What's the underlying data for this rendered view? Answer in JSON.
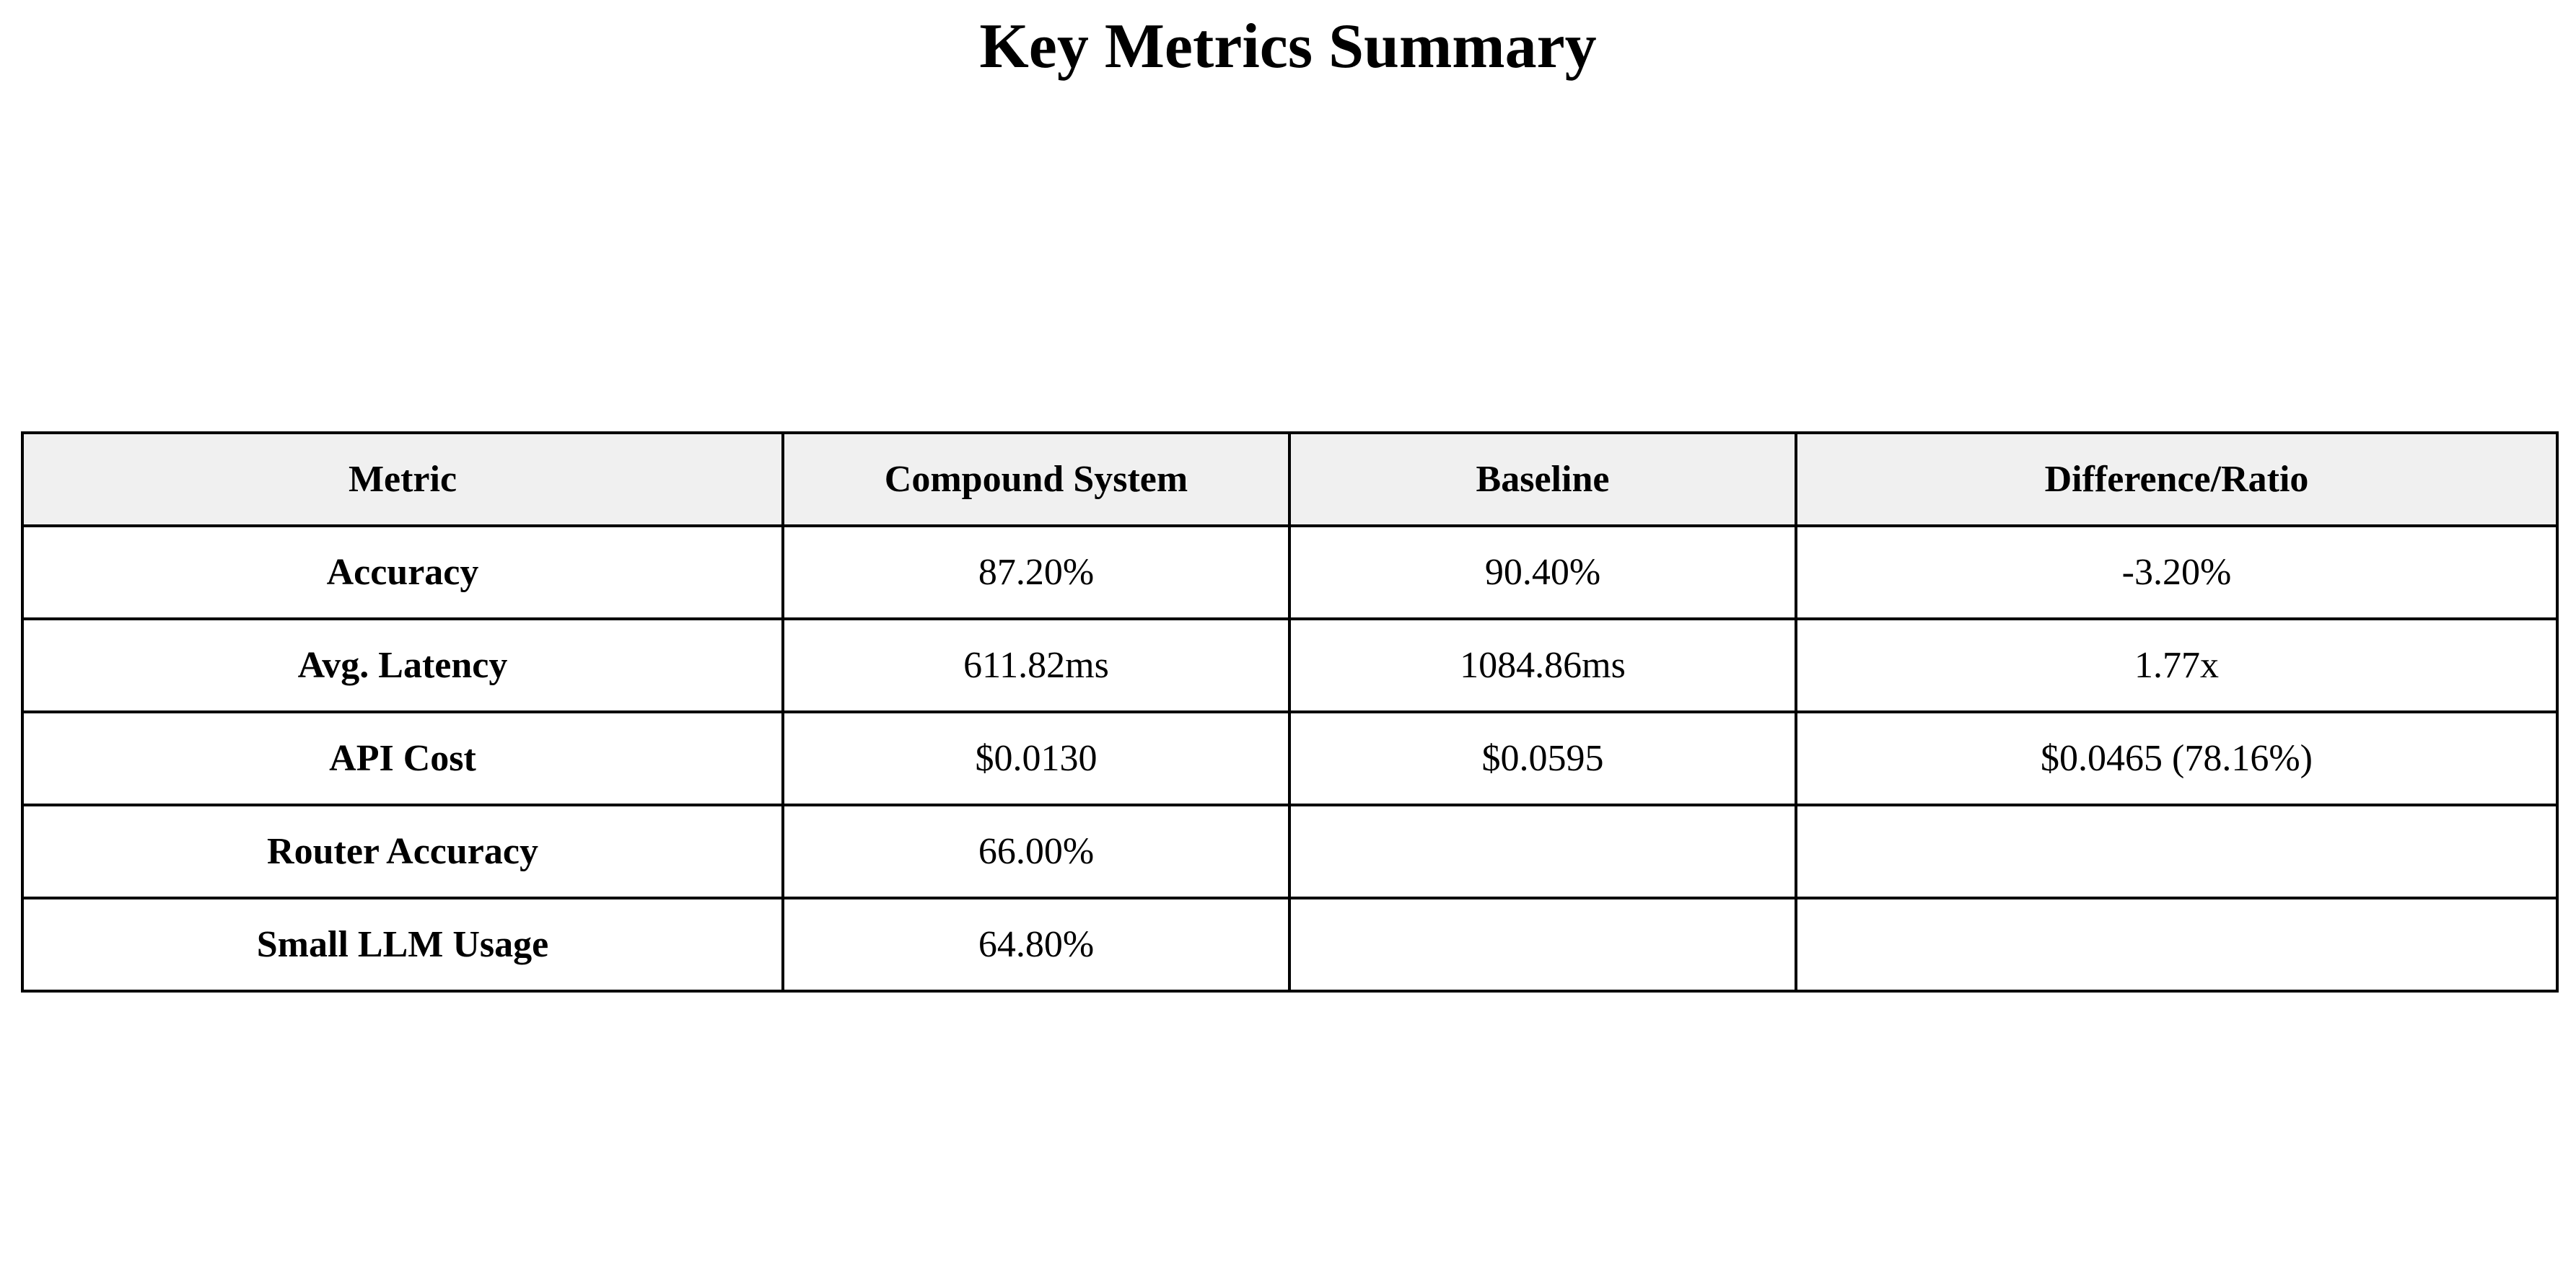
{
  "chart_data": {
    "type": "table",
    "title": "Key Metrics Summary",
    "columns": [
      "Metric",
      "Compound System",
      "Baseline",
      "Difference/Ratio"
    ],
    "rows": [
      [
        "Accuracy",
        "87.20%",
        "90.40%",
        "-3.20%"
      ],
      [
        "Avg. Latency",
        "611.82ms",
        "1084.86ms",
        "1.77x"
      ],
      [
        "API Cost",
        "$0.0130",
        "$0.0595",
        "$0.0465 (78.16%)"
      ],
      [
        "Router Accuracy",
        "66.00%",
        "",
        ""
      ],
      [
        "Small LLM Usage",
        "64.80%",
        "",
        ""
      ]
    ]
  },
  "colors": {
    "header_background": "#f0f0f0",
    "border": "#000000",
    "text": "#000000",
    "page_background": "#ffffff"
  }
}
